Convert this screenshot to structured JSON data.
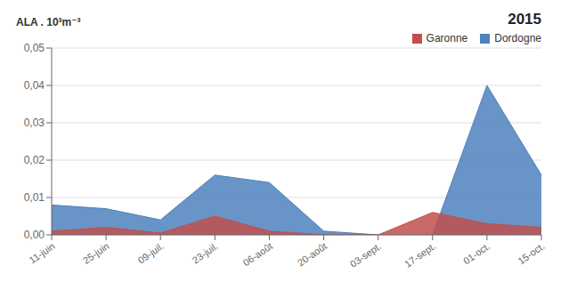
{
  "chart_data": {
    "type": "area",
    "title": "2015",
    "y_label": "ALA . 10³m⁻³",
    "categories": [
      "11-juin",
      "25-juin",
      "09-juil.",
      "23-juil.",
      "06-août",
      "20-août",
      "03-sept.",
      "17-sept.",
      "01-oct.",
      "15-oct."
    ],
    "series": [
      {
        "name": "Garonne",
        "color": "#C0504D",
        "values": [
          0.001,
          0.002,
          0.0005,
          0.005,
          0.001,
          0.0,
          0.0,
          0.006,
          0.003,
          0.002
        ]
      },
      {
        "name": "Dordogne",
        "color": "#4F81BD",
        "values": [
          0.008,
          0.007,
          0.004,
          0.016,
          0.014,
          0.001,
          0.0,
          0.0,
          0.04,
          0.016
        ]
      }
    ],
    "ylim": [
      0.0,
      0.05
    ],
    "yticks": [
      {
        "value": 0.0,
        "label": "0,00"
      },
      {
        "value": 0.01,
        "label": "0,01"
      },
      {
        "value": 0.02,
        "label": "0,02"
      },
      {
        "value": 0.03,
        "label": "0,03"
      },
      {
        "value": 0.04,
        "label": "0,04"
      },
      {
        "value": 0.05,
        "label": "0,05"
      }
    ],
    "grid": true,
    "legend": "upper right"
  }
}
